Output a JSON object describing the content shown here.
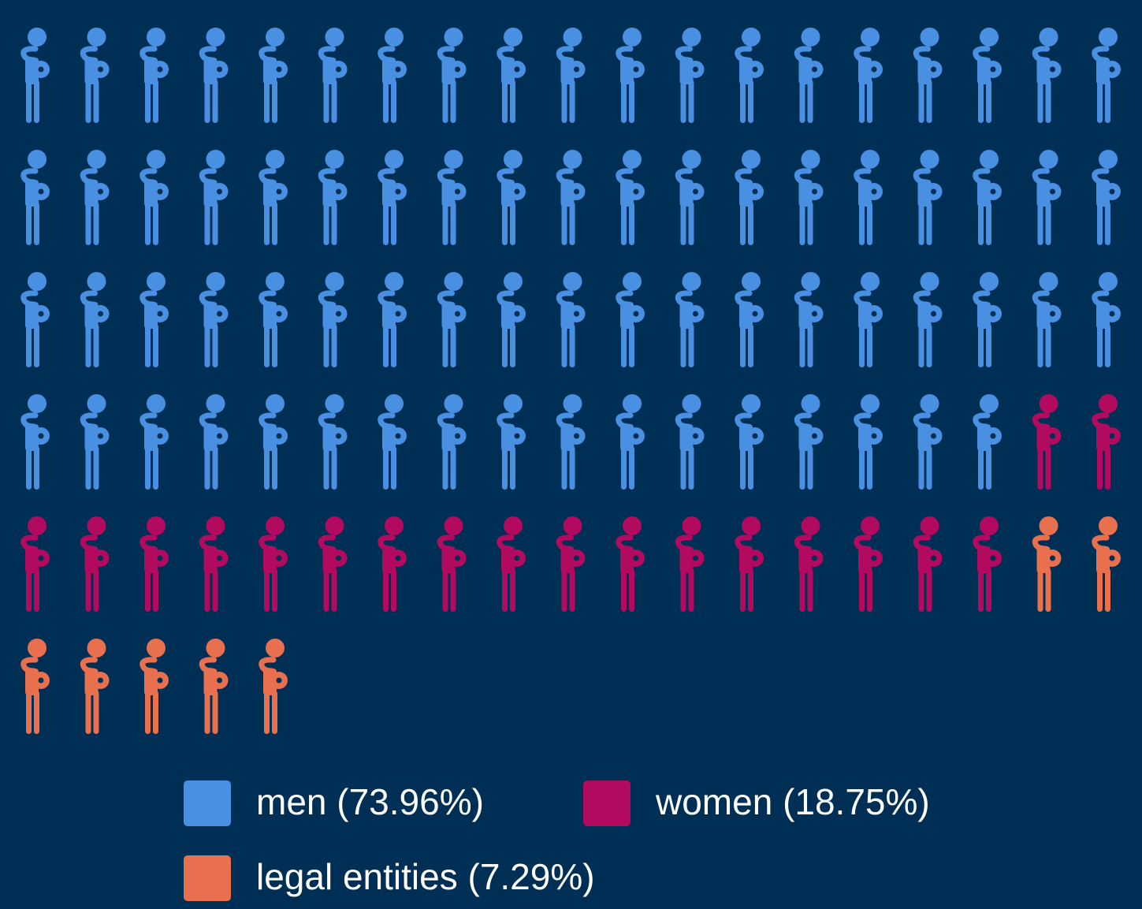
{
  "chart_data": {
    "type": "pictogram",
    "series": [
      {
        "name": "men (73.96%)",
        "color": "#4a90e2",
        "values": [
          74
        ]
      },
      {
        "name": "women (18.75%)",
        "color": "#b10a5f",
        "values": [
          19
        ]
      },
      {
        "name": "legal entities (7.29%)",
        "color": "#e8704e",
        "values": [
          7
        ]
      }
    ],
    "per_row": 19
  }
}
